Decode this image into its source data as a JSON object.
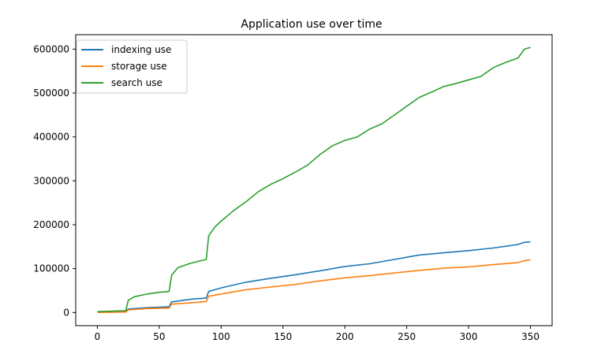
{
  "chart_data": {
    "type": "line",
    "title": "Application use over time",
    "xlabel": "",
    "ylabel": "",
    "xlim": [
      -17.5,
      367.5
    ],
    "ylim": [
      -30000,
      633000
    ],
    "xticks": [
      0,
      50,
      100,
      150,
      200,
      250,
      300,
      350
    ],
    "yticks": [
      0,
      100000,
      200000,
      300000,
      400000,
      500000,
      600000
    ],
    "grid": false,
    "legend": "top-left",
    "series": [
      {
        "name": "indexing use",
        "color": "#1f77b4",
        "points": [
          [
            0,
            1000
          ],
          [
            23,
            3000
          ],
          [
            25,
            8000
          ],
          [
            40,
            11000
          ],
          [
            58,
            13000
          ],
          [
            60,
            24000
          ],
          [
            75,
            30000
          ],
          [
            88,
            33000
          ],
          [
            90,
            48000
          ],
          [
            100,
            56000
          ],
          [
            120,
            69000
          ],
          [
            140,
            78000
          ],
          [
            160,
            86000
          ],
          [
            180,
            95000
          ],
          [
            200,
            105000
          ],
          [
            220,
            111000
          ],
          [
            240,
            121000
          ],
          [
            260,
            131000
          ],
          [
            280,
            136000
          ],
          [
            300,
            141000
          ],
          [
            320,
            147000
          ],
          [
            340,
            155000
          ],
          [
            345,
            160000
          ],
          [
            350,
            161000
          ]
        ]
      },
      {
        "name": "storage use",
        "color": "#ff7f0e",
        "points": [
          [
            0,
            0
          ],
          [
            23,
            1000
          ],
          [
            25,
            6000
          ],
          [
            40,
            9000
          ],
          [
            58,
            10000
          ],
          [
            60,
            19000
          ],
          [
            75,
            22000
          ],
          [
            88,
            25000
          ],
          [
            90,
            37000
          ],
          [
            100,
            42000
          ],
          [
            120,
            52000
          ],
          [
            140,
            58000
          ],
          [
            160,
            64000
          ],
          [
            180,
            72000
          ],
          [
            200,
            79000
          ],
          [
            220,
            84000
          ],
          [
            240,
            90000
          ],
          [
            260,
            96000
          ],
          [
            280,
            101000
          ],
          [
            300,
            104000
          ],
          [
            320,
            109000
          ],
          [
            340,
            114000
          ],
          [
            345,
            118000
          ],
          [
            350,
            120000
          ]
        ]
      },
      {
        "name": "search use",
        "color": "#2ca02c",
        "points": [
          [
            0,
            2000
          ],
          [
            23,
            4000
          ],
          [
            25,
            28000
          ],
          [
            30,
            36000
          ],
          [
            40,
            42000
          ],
          [
            50,
            46000
          ],
          [
            58,
            48000
          ],
          [
            60,
            85000
          ],
          [
            65,
            102000
          ],
          [
            75,
            112000
          ],
          [
            88,
            121000
          ],
          [
            90,
            175000
          ],
          [
            95,
            195000
          ],
          [
            100,
            208000
          ],
          [
            110,
            232000
          ],
          [
            120,
            252000
          ],
          [
            130,
            275000
          ],
          [
            140,
            292000
          ],
          [
            150,
            305000
          ],
          [
            160,
            320000
          ],
          [
            170,
            336000
          ],
          [
            180,
            360000
          ],
          [
            190,
            380000
          ],
          [
            200,
            392000
          ],
          [
            210,
            400000
          ],
          [
            220,
            418000
          ],
          [
            230,
            430000
          ],
          [
            240,
            450000
          ],
          [
            250,
            470000
          ],
          [
            260,
            490000
          ],
          [
            270,
            502000
          ],
          [
            280,
            515000
          ],
          [
            290,
            522000
          ],
          [
            300,
            530000
          ],
          [
            310,
            538000
          ],
          [
            320,
            558000
          ],
          [
            330,
            570000
          ],
          [
            340,
            580000
          ],
          [
            345,
            600000
          ],
          [
            350,
            604000
          ]
        ]
      }
    ]
  }
}
